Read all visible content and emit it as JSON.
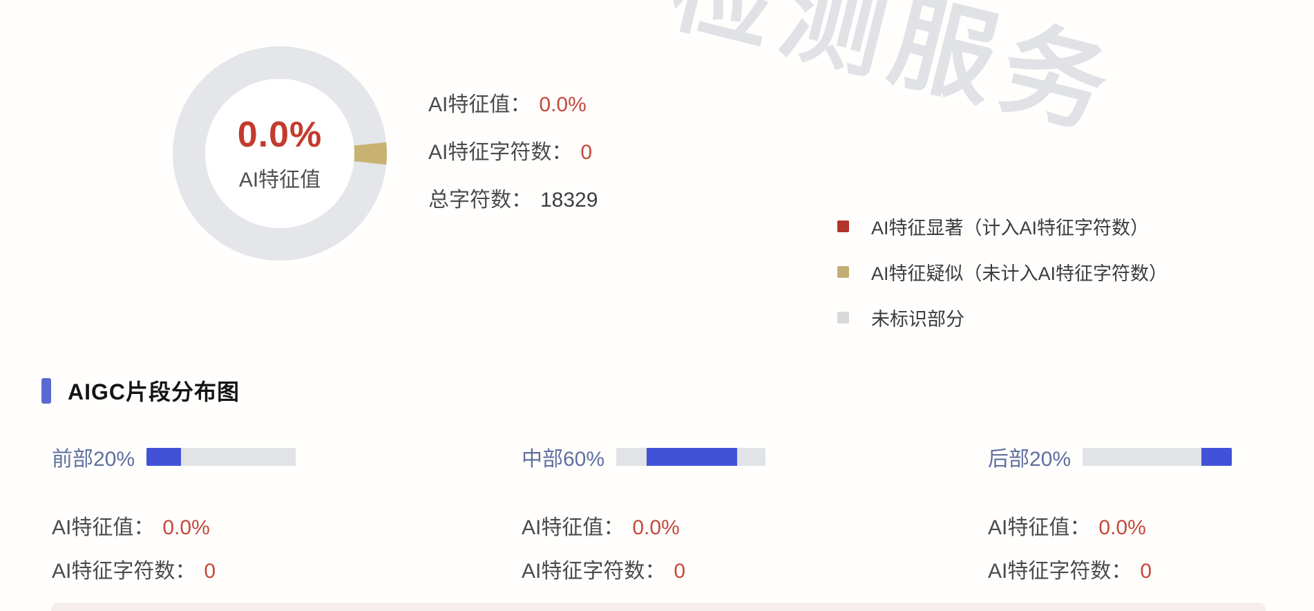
{
  "watermark": {
    "text": "检测服务"
  },
  "colors": {
    "accent_red": "#c23b2e",
    "value_red": "#c5483a",
    "bar_blue": "#4152d9",
    "bar_track": "#e1e3e6",
    "header_accent": "#5b6ad0",
    "label_slate": "#5f6f9e",
    "bottom_band": "#f6eded"
  },
  "donut": {
    "center_value": "0.0%",
    "center_label": "AI特征值",
    "ring_color": "#e4e6ea",
    "segment_color": "#c8b272",
    "segment_from_deg": 84,
    "segment_to_deg": 96
  },
  "summary": {
    "rows": [
      {
        "label": "AI特征值：",
        "value": "0.0%"
      },
      {
        "label": "AI特征字符数：",
        "value": "0"
      },
      {
        "label": "总字符数：",
        "value": "18329"
      }
    ]
  },
  "legend": {
    "items": [
      {
        "label": "AI特征显著（计入AI特征字符数）",
        "color": "#b2352b"
      },
      {
        "label": "AI特征疑似（未计入AI特征字符数）",
        "color": "#c2ae74"
      },
      {
        "label": "未标识部分",
        "color": "#d9d9d9"
      }
    ]
  },
  "section": {
    "title": "AIGC片段分布图"
  },
  "segments": [
    {
      "label": "前部20%",
      "bar": {
        "start_pct": 0,
        "width_pct": 23
      },
      "rows": [
        {
          "label": "AI特征值：",
          "value": "0.0%"
        },
        {
          "label": "AI特征字符数：",
          "value": "0"
        }
      ]
    },
    {
      "label": "中部60%",
      "bar": {
        "start_pct": 20.5,
        "width_pct": 60.5
      },
      "rows": [
        {
          "label": "AI特征值：",
          "value": "0.0%"
        },
        {
          "label": "AI特征字符数：",
          "value": "0"
        }
      ]
    },
    {
      "label": "后部20%",
      "bar": {
        "start_pct": 79.5,
        "width_pct": 20.5
      },
      "rows": [
        {
          "label": "AI特征值：",
          "value": "0.0%"
        },
        {
          "label": "AI特征字符数：",
          "value": "0"
        }
      ]
    }
  ],
  "chart_data": [
    {
      "type": "pie",
      "title": "AI特征值",
      "center_value": "0.0%",
      "slices": [
        {
          "label": "AI特征显著（计入AI特征字符数）",
          "value": 0.0,
          "color": "#b2352b"
        },
        {
          "label": "AI特征疑似（未计入AI特征字符数）",
          "value": 3.3,
          "color": "#c8b272"
        },
        {
          "label": "未标识部分",
          "value": 96.7,
          "color": "#e4e6ea"
        }
      ],
      "note": "donut chart; thin tan sliver at the 3 o'clock position, rest light gray; legend at right",
      "legend_position": "right"
    },
    {
      "type": "bar",
      "title": "AIGC片段分布图",
      "categories": [
        "前部20%",
        "中部60%",
        "后部20%"
      ],
      "series": [
        {
          "name": "AI特征值",
          "values": [
            0.0,
            0.0,
            0.0
          ]
        },
        {
          "name": "AI特征字符数",
          "values": [
            0,
            0,
            0
          ]
        }
      ],
      "note": "three horizontal position-indicator bars; blue highlighted document range per bar: 0-20%, 20-80%, 80-100%",
      "total_characters": 18329
    }
  ]
}
